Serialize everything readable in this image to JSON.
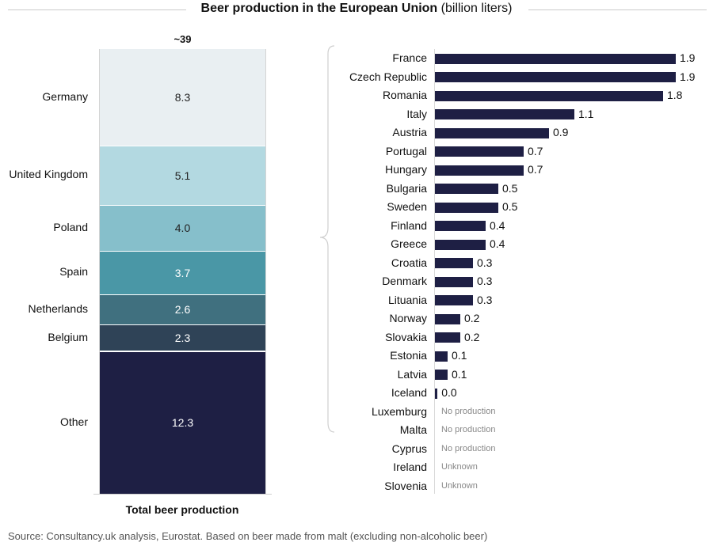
{
  "title": {
    "bold": "Beer production in the European Union",
    "light": "(billion liters)"
  },
  "chart_data": [
    {
      "type": "bar",
      "subtype": "stacked-single-column",
      "title": "Total beer production",
      "total_label": "~39",
      "unit": "billion liters",
      "series": [
        {
          "name": "Germany",
          "value": 8.3,
          "label": "8.3",
          "color": "#e9eff2",
          "text_color": "#222222"
        },
        {
          "name": "United Kingdom",
          "value": 5.1,
          "label": "5.1",
          "color": "#b3d9e1",
          "text_color": "#222222"
        },
        {
          "name": "Poland",
          "value": 4.0,
          "label": "4.0",
          "color": "#86bfcb",
          "text_color": "#222222"
        },
        {
          "name": "Spain",
          "value": 3.7,
          "label": "3.7",
          "color": "#4a97a6",
          "text_color": "#ffffff"
        },
        {
          "name": "Netherlands",
          "value": 2.6,
          "label": "2.6",
          "color": "#40707f",
          "text_color": "#ffffff"
        },
        {
          "name": "Belgium",
          "value": 2.3,
          "label": "2.3",
          "color": "#2f4357",
          "text_color": "#ffffff"
        },
        {
          "name": "Other",
          "value": 12.3,
          "label": "12.3",
          "color": "#1e1f44",
          "text_color": "#ffffff"
        }
      ]
    },
    {
      "type": "bar",
      "subtype": "horizontal",
      "title": "Other",
      "xlim": [
        0,
        1.95
      ],
      "bar_color": "#1e1f44",
      "categories": [
        "France",
        "Czech Republic",
        "Romania",
        "Italy",
        "Austria",
        "Portugal",
        "Hungary",
        "Bulgaria",
        "Sweden",
        "Finland",
        "Greece",
        "Croatia",
        "Denmark",
        "Lituania",
        "Norway",
        "Slovakia",
        "Estonia",
        "Latvia",
        "Iceland",
        "Luxemburg",
        "Malta",
        "Cyprus",
        "Ireland",
        "Slovenia"
      ],
      "values": [
        1.9,
        1.9,
        1.8,
        1.1,
        0.9,
        0.7,
        0.7,
        0.5,
        0.5,
        0.4,
        0.4,
        0.3,
        0.3,
        0.3,
        0.2,
        0.2,
        0.1,
        0.1,
        0.02,
        null,
        null,
        null,
        null,
        null
      ],
      "labels": [
        "1.9",
        "1.9",
        "1.8",
        "1.1",
        "0.9",
        "0.7",
        "0.7",
        "0.5",
        "0.5",
        "0.4",
        "0.4",
        "0.3",
        "0.3",
        "0.3",
        "0.2",
        "0.2",
        "0.1",
        "0.1",
        "0.0",
        "No production",
        "No production",
        "No production",
        "Unknown",
        "Unknown"
      ]
    }
  ],
  "source": "Source: Consultancy.uk analysis, Eurostat. Based on beer made from malt (excluding non-alcoholic beer)"
}
